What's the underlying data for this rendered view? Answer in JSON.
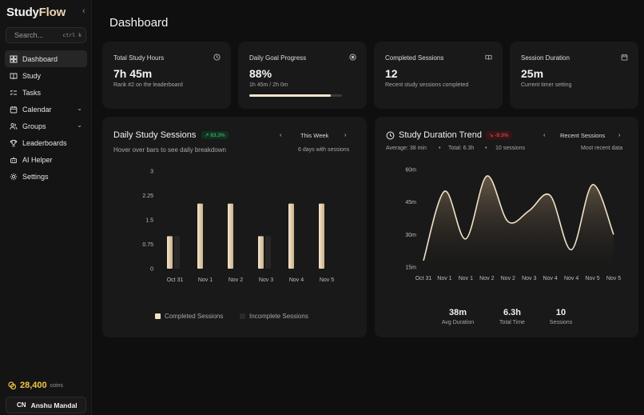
{
  "brand": {
    "name_main": "Study",
    "name_accent": "Flow"
  },
  "search": {
    "placeholder": "Search...",
    "shortcut": "ctrl k"
  },
  "sidebar": {
    "items": [
      {
        "label": "Dashboard",
        "icon": "grid-icon",
        "active": true
      },
      {
        "label": "Study",
        "icon": "book-icon"
      },
      {
        "label": "Tasks",
        "icon": "checklist-icon"
      },
      {
        "label": "Calendar",
        "icon": "calendar-icon",
        "has_chevron": true
      },
      {
        "label": "Groups",
        "icon": "users-icon",
        "has_chevron": true
      },
      {
        "label": "Leaderboards",
        "icon": "trophy-icon"
      },
      {
        "label": "AI Helper",
        "icon": "bot-icon"
      },
      {
        "label": "Settings",
        "icon": "gear-icon"
      }
    ],
    "coins": {
      "value": "28,400",
      "unit": "coins"
    },
    "user": {
      "initials": "CN",
      "name": "Anshu Mandal"
    }
  },
  "page": {
    "title": "Dashboard"
  },
  "stats": [
    {
      "title": "Total Study Hours",
      "value": "7h 45m",
      "sub": "Rank #2 on the leaderboard",
      "icon": "clock-icon"
    },
    {
      "title": "Daily Goal Progress",
      "value": "88%",
      "sub": "1h 45m / 2h 0m",
      "icon": "target-icon",
      "progress": 0.88
    },
    {
      "title": "Completed Sessions",
      "value": "12",
      "sub": "Recent study sessions completed",
      "icon": "book-open-icon"
    },
    {
      "title": "Session Duration",
      "value": "25m",
      "sub": "Current timer setting",
      "icon": "calendar-icon"
    }
  ],
  "daily": {
    "title": "Daily Study Sessions",
    "badge": "83.3%",
    "period": "This Week",
    "subtitle": "Hover over bars to see daily breakdown",
    "note": "6 days with sessions",
    "legend_completed": "Completed Sessions",
    "legend_incomplete": "Incomplete Sessions"
  },
  "trend": {
    "title": "Study Duration Trend",
    "badge": "-9.3%",
    "period": "Recent Sessions",
    "average": "Average: 38 min",
    "total": "Total: 6.3h",
    "sessions": "10 sessions",
    "note": "Most recent data",
    "summary": [
      {
        "value": "38m",
        "label": "Avg Duration"
      },
      {
        "value": "6.3h",
        "label": "Total Time"
      },
      {
        "value": "10",
        "label": "Sessions"
      }
    ]
  },
  "colors": {
    "accent": "#e9d3b1",
    "bg": "#0f0f0f",
    "card": "#191919",
    "coin": "#f4c542",
    "up": "#3ecf7a",
    "down": "#ef5b5b"
  },
  "chart_data": [
    {
      "type": "bar",
      "categories": [
        "Oct 31",
        "Nov 1",
        "Nov 2",
        "Nov 3",
        "Nov 4",
        "Nov 5"
      ],
      "series": [
        {
          "name": "Completed Sessions",
          "values": [
            1,
            2,
            2,
            1,
            2,
            2
          ]
        },
        {
          "name": "Incomplete Sessions",
          "values": [
            1,
            0,
            0,
            1,
            0,
            0
          ]
        }
      ],
      "yticks": [
        "3",
        "2.25",
        "1.5",
        "0.75",
        "0"
      ],
      "ylim": [
        0,
        3
      ]
    },
    {
      "type": "area",
      "x": [
        "Oct 31",
        "Nov 1",
        "Nov 1",
        "Nov 2",
        "Nov 2",
        "Nov 3",
        "Nov 4",
        "Nov 4",
        "Nov 5",
        "Nov 5"
      ],
      "values_min": [
        18,
        50,
        28,
        57,
        36,
        41,
        48,
        23,
        53,
        30
      ],
      "yticks": [
        "60m",
        "45m",
        "30m",
        "15m"
      ],
      "ylim": [
        15,
        60
      ]
    }
  ]
}
